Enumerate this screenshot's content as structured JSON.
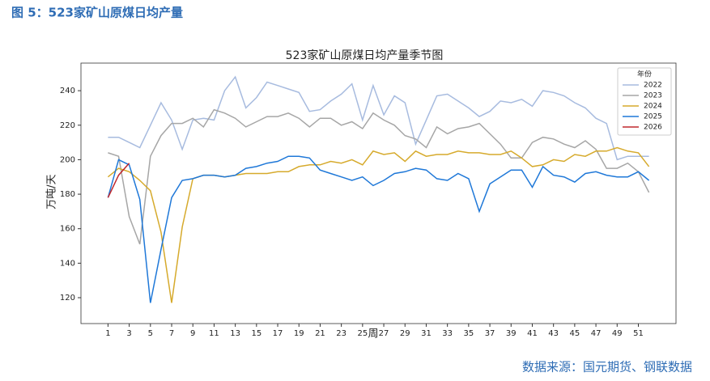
{
  "header": {
    "title": "图 5：523家矿山原煤日均产量"
  },
  "chart_data": {
    "type": "line",
    "title": "523家矿山原煤日均产量季节图",
    "x_label": "周",
    "y_label": "万吨/天",
    "x": [
      1,
      2,
      3,
      4,
      5,
      6,
      7,
      8,
      9,
      10,
      11,
      12,
      13,
      14,
      15,
      16,
      17,
      18,
      19,
      20,
      21,
      22,
      23,
      24,
      25,
      26,
      27,
      28,
      29,
      30,
      31,
      32,
      33,
      34,
      35,
      36,
      37,
      38,
      39,
      40,
      41,
      42,
      43,
      44,
      45,
      46,
      47,
      48,
      49,
      50,
      51,
      52
    ],
    "xlim": [
      -1.55,
      54.55
    ],
    "xticks": [
      1,
      3,
      5,
      7,
      9,
      11,
      13,
      15,
      17,
      19,
      21,
      23,
      25,
      27,
      29,
      31,
      33,
      35,
      37,
      39,
      41,
      43,
      45,
      47,
      49,
      51
    ],
    "ylim": [
      105,
      256
    ],
    "yticks": [
      120,
      140,
      160,
      180,
      200,
      220,
      240
    ],
    "legend_title": "年份",
    "legend_position": "upper right",
    "series": [
      {
        "name": "2022",
        "color": "#a7bbdf",
        "values": [
          213,
          213,
          210,
          207,
          220,
          233,
          223,
          206,
          223,
          224,
          223,
          240,
          248,
          230,
          236,
          245,
          243,
          241,
          239,
          228,
          229,
          234,
          238,
          244,
          223,
          243,
          226,
          237,
          233,
          209,
          223,
          237,
          238,
          234,
          230,
          225,
          228,
          234,
          233,
          235,
          231,
          240,
          239,
          237,
          233,
          230,
          224,
          221,
          200,
          202,
          202,
          202
        ]
      },
      {
        "name": "2023",
        "color": "#a6a6a6",
        "values": [
          204,
          202,
          167,
          151,
          202,
          214,
          221,
          221,
          224,
          219,
          229,
          227,
          224,
          219,
          222,
          225,
          225,
          227,
          224,
          219,
          224,
          224,
          220,
          222,
          218,
          227,
          223,
          220,
          214,
          212,
          207,
          219,
          215,
          218,
          219,
          221,
          215,
          209,
          201,
          201,
          210,
          213,
          212,
          209,
          207,
          211,
          206,
          195,
          195,
          198,
          193,
          181
        ]
      },
      {
        "name": "2024",
        "color": "#d6aa2c",
        "values": [
          190,
          195,
          193,
          188,
          182,
          158,
          117,
          161,
          189,
          191,
          191,
          190,
          191,
          192,
          192,
          192,
          193,
          193,
          196,
          197,
          197,
          199,
          198,
          200,
          197,
          205,
          203,
          204,
          199,
          205,
          202,
          203,
          203,
          205,
          204,
          204,
          203,
          203,
          205,
          201,
          196,
          197,
          200,
          199,
          203,
          202,
          205,
          205,
          207,
          205,
          204,
          196
        ]
      },
      {
        "name": "2025",
        "color": "#1f78d8",
        "values": [
          178,
          200,
          197,
          177,
          117,
          148,
          178,
          188,
          189,
          191,
          191,
          190,
          191,
          195,
          196,
          198,
          199,
          202,
          202,
          201,
          194,
          192,
          190,
          188,
          190,
          185,
          188,
          192,
          193,
          195,
          194,
          189,
          188,
          192,
          189,
          170,
          186,
          190,
          194,
          194,
          184,
          196,
          191,
          190,
          187,
          192,
          193,
          191,
          190,
          190,
          193,
          188
        ]
      },
      {
        "name": "2026",
        "color": "#c0282d",
        "values": [
          178,
          191,
          198,
          null,
          null,
          null,
          null,
          null,
          null,
          null,
          null,
          null,
          null,
          null,
          null,
          null,
          null,
          null,
          null,
          null,
          null,
          null,
          null,
          null,
          null,
          null,
          null,
          null,
          null,
          null,
          null,
          null,
          null,
          null,
          null,
          null,
          null,
          null,
          null,
          null,
          null,
          null,
          null,
          null,
          null,
          null,
          null,
          null,
          null,
          null,
          null,
          null
        ]
      }
    ]
  },
  "footer": {
    "source": "数据来源：国元期货、钢联数据"
  }
}
